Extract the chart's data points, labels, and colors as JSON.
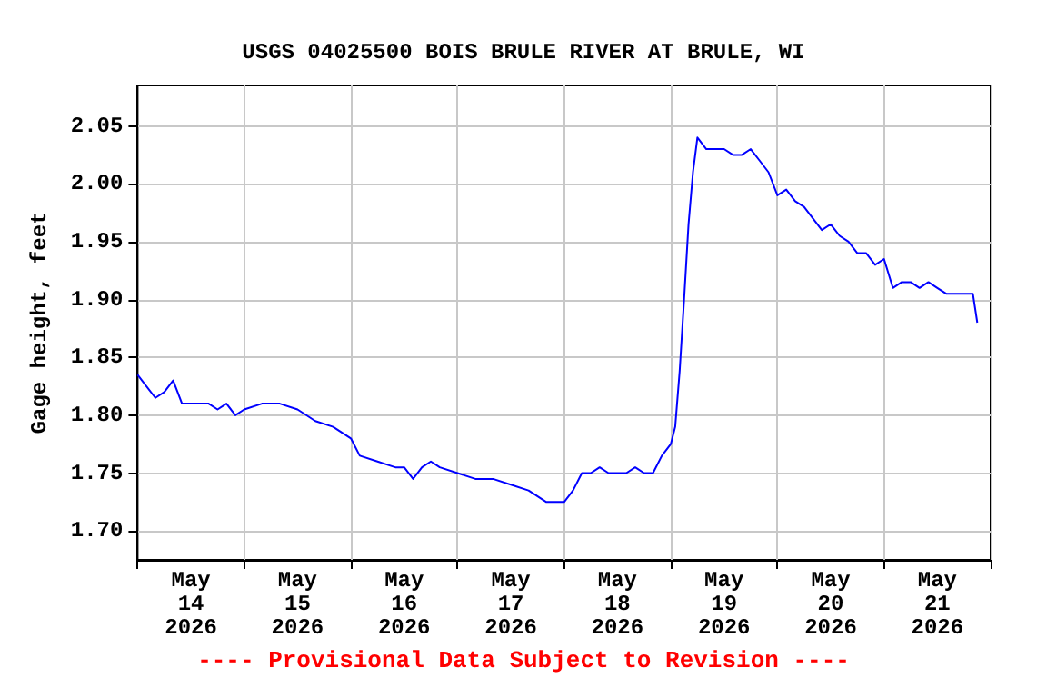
{
  "chart_data": {
    "type": "line",
    "title": "USGS 04025500 BOIS BRULE RIVER AT BRULE, WI",
    "ylabel": "Gage height, feet",
    "annotations": [
      "---- Provisional Data Subject to Revision ----"
    ],
    "x": [
      "2026-05-14T00:00",
      "2026-05-14T02:00",
      "2026-05-14T04:00",
      "2026-05-14T06:00",
      "2026-05-14T08:00",
      "2026-05-14T10:00",
      "2026-05-14T12:00",
      "2026-05-14T14:00",
      "2026-05-14T16:00",
      "2026-05-14T18:00",
      "2026-05-14T20:00",
      "2026-05-14T22:00",
      "2026-05-15T00:00",
      "2026-05-15T04:00",
      "2026-05-15T08:00",
      "2026-05-15T12:00",
      "2026-05-15T16:00",
      "2026-05-15T20:00",
      "2026-05-16T00:00",
      "2026-05-16T02:00",
      "2026-05-16T06:00",
      "2026-05-16T10:00",
      "2026-05-16T12:00",
      "2026-05-16T14:00",
      "2026-05-16T16:00",
      "2026-05-16T18:00",
      "2026-05-16T20:00",
      "2026-05-17T00:00",
      "2026-05-17T04:00",
      "2026-05-17T08:00",
      "2026-05-17T12:00",
      "2026-05-17T16:00",
      "2026-05-17T20:00",
      "2026-05-17T22:00",
      "2026-05-18T00:00",
      "2026-05-18T02:00",
      "2026-05-18T04:00",
      "2026-05-18T06:00",
      "2026-05-18T08:00",
      "2026-05-18T10:00",
      "2026-05-18T12:00",
      "2026-05-18T14:00",
      "2026-05-18T16:00",
      "2026-05-18T18:00",
      "2026-05-18T20:00",
      "2026-05-18T22:00",
      "2026-05-19T00:00",
      "2026-05-19T01:00",
      "2026-05-19T02:00",
      "2026-05-19T03:00",
      "2026-05-19T04:00",
      "2026-05-19T05:00",
      "2026-05-19T06:00",
      "2026-05-19T08:00",
      "2026-05-19T10:00",
      "2026-05-19T12:00",
      "2026-05-19T14:00",
      "2026-05-19T16:00",
      "2026-05-19T18:00",
      "2026-05-19T20:00",
      "2026-05-19T22:00",
      "2026-05-20T00:00",
      "2026-05-20T02:00",
      "2026-05-20T04:00",
      "2026-05-20T06:00",
      "2026-05-20T08:00",
      "2026-05-20T10:00",
      "2026-05-20T12:00",
      "2026-05-20T14:00",
      "2026-05-20T16:00",
      "2026-05-20T18:00",
      "2026-05-20T20:00",
      "2026-05-20T22:00",
      "2026-05-21T00:00",
      "2026-05-21T02:00",
      "2026-05-21T04:00",
      "2026-05-21T06:00",
      "2026-05-21T08:00",
      "2026-05-21T10:00",
      "2026-05-21T12:00",
      "2026-05-21T14:00",
      "2026-05-21T16:00",
      "2026-05-21T18:00",
      "2026-05-21T20:00",
      "2026-05-21T21:00"
    ],
    "series": [
      {
        "color": "#0000ff",
        "values": [
          1.835,
          1.825,
          1.815,
          1.82,
          1.83,
          1.81,
          1.81,
          1.81,
          1.81,
          1.805,
          1.81,
          1.8,
          1.805,
          1.81,
          1.81,
          1.805,
          1.795,
          1.79,
          1.78,
          1.765,
          1.76,
          1.755,
          1.755,
          1.745,
          1.755,
          1.76,
          1.755,
          1.75,
          1.745,
          1.745,
          1.74,
          1.735,
          1.725,
          1.725,
          1.725,
          1.735,
          1.75,
          1.75,
          1.755,
          1.75,
          1.75,
          1.75,
          1.755,
          1.75,
          1.75,
          1.765,
          1.775,
          1.79,
          1.838,
          1.9,
          1.965,
          2.01,
          2.04,
          2.03,
          2.03,
          2.03,
          2.025,
          2.025,
          2.03,
          2.02,
          2.01,
          1.99,
          1.995,
          1.985,
          1.98,
          1.97,
          1.96,
          1.965,
          1.955,
          1.95,
          1.94,
          1.94,
          1.93,
          1.935,
          1.91,
          1.915,
          1.915,
          1.91,
          1.915,
          1.91,
          1.905,
          1.905,
          1.905,
          1.905,
          1.88
        ]
      }
    ],
    "xlim": [
      "2026-05-14T00:00",
      "2026-05-22T00:00"
    ],
    "xticks": [
      {
        "value": "2026-05-14T00:00",
        "label": null
      },
      {
        "value": "2026-05-14T12:00",
        "label": "May\n14\n2026"
      },
      {
        "value": "2026-05-15T00:00",
        "label": null
      },
      {
        "value": "2026-05-15T12:00",
        "label": "May\n15\n2026"
      },
      {
        "value": "2026-05-16T00:00",
        "label": null
      },
      {
        "value": "2026-05-16T12:00",
        "label": "May\n16\n2026"
      },
      {
        "value": "2026-05-17T00:00",
        "label": null
      },
      {
        "value": "2026-05-17T12:00",
        "label": "May\n17\n2026"
      },
      {
        "value": "2026-05-18T00:00",
        "label": null
      },
      {
        "value": "2026-05-18T12:00",
        "label": "May\n18\n2026"
      },
      {
        "value": "2026-05-19T00:00",
        "label": null
      },
      {
        "value": "2026-05-19T12:00",
        "label": "May\n19\n2026"
      },
      {
        "value": "2026-05-20T00:00",
        "label": null
      },
      {
        "value": "2026-05-20T12:00",
        "label": "May\n20\n2026"
      },
      {
        "value": "2026-05-21T00:00",
        "label": null
      },
      {
        "value": "2026-05-21T12:00",
        "label": "May\n21\n2026"
      },
      {
        "value": "2026-05-22T00:00",
        "label": null
      }
    ],
    "ylim": [
      1.675,
      2.085
    ],
    "yticks": [
      {
        "value": 1.7,
        "label": "1.70"
      },
      {
        "value": 1.75,
        "label": "1.75"
      },
      {
        "value": 1.8,
        "label": "1.80"
      },
      {
        "value": 1.85,
        "label": "1.85"
      },
      {
        "value": 1.9,
        "label": "1.90"
      },
      {
        "value": 1.95,
        "label": "1.95"
      },
      {
        "value": 2.0,
        "label": "2.00"
      },
      {
        "value": 2.05,
        "label": "2.05"
      }
    ],
    "grid": true,
    "marker": "none",
    "line_style": "solid"
  }
}
